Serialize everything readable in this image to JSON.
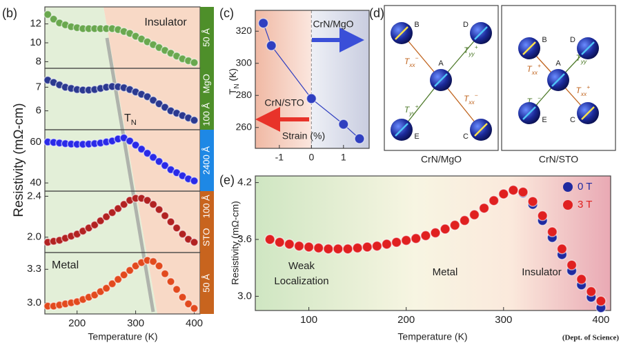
{
  "chart_data": [
    {
      "type": "scatter",
      "label": "(b)",
      "ylabel": "Resistivity (mΩ-cm)",
      "annotation": "Insulator",
      "x": [
        150,
        160,
        170,
        180,
        190,
        200,
        210,
        220,
        230,
        240,
        250,
        260,
        270,
        280,
        290,
        300,
        310,
        320,
        330,
        340,
        350,
        360,
        370,
        380,
        390,
        400
      ],
      "values": [
        13.0,
        12.5,
        12.1,
        11.9,
        11.7,
        11.6,
        11.5,
        11.5,
        11.5,
        11.5,
        11.5,
        11.5,
        11.4,
        11.2,
        11.0,
        10.7,
        10.4,
        10.1,
        9.8,
        9.5,
        9.2,
        8.9,
        8.6,
        8.3,
        8.1,
        7.9
      ],
      "xlim": [
        145,
        410
      ],
      "ylim": [
        7.3,
        13.8
      ],
      "yticks": [
        8,
        10,
        12
      ],
      "color": "#6aa84f",
      "tag_color": "#4e8f2a",
      "tags": [
        "50 Å"
      ]
    },
    {
      "type": "scatter",
      "annotation": {
        "text": "T",
        "sub": "N"
      },
      "x": [
        150,
        160,
        170,
        180,
        190,
        200,
        210,
        220,
        230,
        240,
        250,
        260,
        270,
        280,
        290,
        300,
        310,
        320,
        330,
        340,
        350,
        360,
        370,
        380,
        390,
        400
      ],
      "values": [
        7.3,
        7.2,
        7.1,
        7.0,
        6.95,
        6.9,
        6.88,
        6.88,
        6.9,
        6.95,
        7.0,
        7.03,
        7.02,
        6.98,
        6.9,
        6.8,
        6.7,
        6.6,
        6.45,
        6.3,
        6.15,
        6.0,
        5.9,
        5.8,
        5.7,
        5.6
      ],
      "xlim": [
        145,
        410
      ],
      "ylim": [
        5.2,
        7.8
      ],
      "yticks": [
        6,
        7
      ],
      "color": "#2b3990",
      "tag_color": "#4e8f2a",
      "tags": [
        "MgO",
        "100 Å"
      ]
    },
    {
      "type": "scatter",
      "x": [
        150,
        160,
        170,
        180,
        190,
        200,
        210,
        220,
        230,
        240,
        250,
        260,
        270,
        280,
        290,
        300,
        310,
        320,
        330,
        340,
        350,
        360,
        370,
        380,
        390,
        400
      ],
      "values": [
        60,
        59.8,
        59.5,
        59.2,
        59.0,
        58.9,
        58.9,
        59.0,
        59.2,
        59.5,
        60,
        60.5,
        61.5,
        62,
        60.5,
        58.5,
        56.5,
        54.5,
        52.5,
        50.5,
        48.5,
        46.5,
        45,
        43.5,
        42,
        41
      ],
      "xlim": [
        145,
        410
      ],
      "ylim": [
        36,
        66
      ],
      "yticks": [
        40,
        60
      ],
      "color": "#2a2ae8",
      "tag_color": "#1e88e5",
      "tags": [
        "2400 Å"
      ]
    },
    {
      "type": "scatter",
      "x": [
        150,
        160,
        170,
        180,
        190,
        200,
        210,
        220,
        230,
        240,
        250,
        260,
        270,
        280,
        290,
        300,
        310,
        320,
        330,
        340,
        350,
        360,
        370,
        380,
        390,
        400
      ],
      "values": [
        1.95,
        1.96,
        1.97,
        1.99,
        2.01,
        2.03,
        2.06,
        2.09,
        2.12,
        2.16,
        2.2,
        2.24,
        2.28,
        2.32,
        2.36,
        2.38,
        2.38,
        2.36,
        2.32,
        2.27,
        2.21,
        2.15,
        2.09,
        2.03,
        1.98,
        1.95
      ],
      "xlim": [
        145,
        410
      ],
      "ylim": [
        1.85,
        2.45
      ],
      "yticks": [
        {
          "value": 2,
          "label": "2.0"
        },
        2.4
      ],
      "color": "#b22222",
      "tag_color": "#c8641e",
      "tags": [
        "100 Å",
        "STO"
      ]
    },
    {
      "type": "scatter",
      "annotation": "Metal",
      "xlabel": "Temperature (K)",
      "x": [
        150,
        160,
        170,
        180,
        190,
        200,
        210,
        220,
        230,
        240,
        250,
        260,
        270,
        280,
        290,
        300,
        310,
        320,
        330,
        340,
        350,
        360,
        370,
        380,
        390,
        400
      ],
      "values": [
        2.97,
        2.97,
        2.98,
        2.99,
        3.0,
        3.01,
        3.03,
        3.05,
        3.07,
        3.1,
        3.13,
        3.17,
        3.21,
        3.25,
        3.29,
        3.33,
        3.36,
        3.38,
        3.37,
        3.33,
        3.26,
        3.19,
        3.12,
        3.05,
        2.99,
        2.95
      ],
      "xlim": [
        145,
        410
      ],
      "xticks": [
        200,
        300,
        400
      ],
      "ylim": [
        2.9,
        3.45
      ],
      "yticks": [
        {
          "value": 3,
          "label": "3.0"
        },
        3.3
      ],
      "color": "#e24a1e",
      "tag_color": "#c8641e",
      "tags": [
        "50 Å"
      ]
    },
    {
      "type": "line",
      "label": "(c)",
      "x": [
        -1.5,
        -1.25,
        0,
        1,
        1.5
      ],
      "values": [
        325,
        311,
        278,
        262,
        253
      ],
      "xlim": [
        -1.75,
        1.8
      ],
      "xticks": [
        -1,
        0,
        1
      ],
      "ylim": [
        247,
        333
      ],
      "yticks": [
        260,
        280,
        300,
        320
      ],
      "ylabel": {
        "text": "T",
        "sub": "N",
        "rest": " (K)"
      },
      "xlabel": "Strain (%)",
      "annotations": [
        "CrN/MgO",
        "CrN/STO"
      ],
      "color": "#2f3fc0"
    },
    {
      "type": "scatter",
      "label": "(e)",
      "xlabel": "Temperature (K)",
      "ylabel": "Resistivity (mΩ-cm)",
      "x": [
        60,
        70,
        80,
        90,
        100,
        110,
        120,
        130,
        140,
        150,
        160,
        170,
        180,
        190,
        200,
        210,
        220,
        230,
        240,
        250,
        260,
        270,
        280,
        290,
        300,
        310,
        320,
        330,
        340,
        350,
        360,
        370,
        380,
        390,
        400
      ],
      "series": [
        {
          "name": "0 T",
          "color": "#1f2aa0",
          "values": [
            3.6,
            3.57,
            3.55,
            3.53,
            3.52,
            3.51,
            3.5,
            3.5,
            3.5,
            3.51,
            3.52,
            3.53,
            3.55,
            3.57,
            3.59,
            3.61,
            3.64,
            3.67,
            3.71,
            3.75,
            3.8,
            3.86,
            3.93,
            4.01,
            4.08,
            4.12,
            4.09,
            3.97,
            3.8,
            3.62,
            3.44,
            3.27,
            3.12,
            2.99,
            2.88
          ]
        },
        {
          "name": "3 T",
          "color": "#e02020",
          "values": [
            3.6,
            3.57,
            3.55,
            3.53,
            3.52,
            3.51,
            3.5,
            3.5,
            3.5,
            3.51,
            3.52,
            3.53,
            3.55,
            3.57,
            3.59,
            3.61,
            3.64,
            3.67,
            3.71,
            3.75,
            3.8,
            3.86,
            3.93,
            4.01,
            4.08,
            4.12,
            4.1,
            4.0,
            3.85,
            3.68,
            3.5,
            3.33,
            3.18,
            3.05,
            2.95
          ]
        }
      ],
      "xlim": [
        45,
        410
      ],
      "xticks": [
        100,
        200,
        300,
        400
      ],
      "ylim": [
        2.85,
        4.27
      ],
      "yticks": [
        {
          "value": 3,
          "label": "3.0"
        },
        3.6,
        4.2
      ],
      "annotations": [
        [
          "Weak",
          "Localization"
        ],
        "Metal",
        "Insulator"
      ],
      "legend": "upper right"
    }
  ],
  "diagram": {
    "label": "(d)",
    "panels": [
      {
        "caption": "CrN/MgO",
        "nodes": [
          "A",
          "B",
          "C",
          "D",
          "E"
        ],
        "couplings": [
          {
            "from": "B",
            "to": "A",
            "color": "#c0641e",
            "label": {
              "base": "T",
              "sub": "xx",
              "sup": "−"
            }
          },
          {
            "from": "A",
            "to": "D",
            "color": "#4e7a2a",
            "label": {
              "base": "T",
              "sub": "yy",
              "sup": "+"
            }
          },
          {
            "from": "E",
            "to": "A",
            "color": "#4e7a2a",
            "label": {
              "base": "T",
              "sub": "yy",
              "sup": "+"
            }
          },
          {
            "from": "A",
            "to": "C",
            "color": "#c0641e",
            "label": {
              "base": "T",
              "sub": "xx",
              "sup": "−"
            }
          }
        ]
      },
      {
        "caption": "CrN/STO",
        "nodes": [
          "A",
          "B",
          "C",
          "D",
          "E"
        ],
        "couplings": [
          {
            "from": "B",
            "to": "A",
            "color": "#c0641e",
            "label": {
              "base": "T",
              "sub": "xx",
              "sup": "+"
            }
          },
          {
            "from": "A",
            "to": "D",
            "color": "#4e7a2a",
            "label": {
              "base": "T",
              "sub": "yy",
              "sup": "−"
            }
          },
          {
            "from": "E",
            "to": "A",
            "color": "#4e7a2a",
            "label": {
              "base": "T",
              "sub": "yy",
              "sup": "−"
            }
          },
          {
            "from": "A",
            "to": "C",
            "color": "#c0641e",
            "label": {
              "base": "T",
              "sub": "xx",
              "sup": "+"
            }
          }
        ]
      }
    ]
  },
  "credit": "(Dept. of Science)"
}
